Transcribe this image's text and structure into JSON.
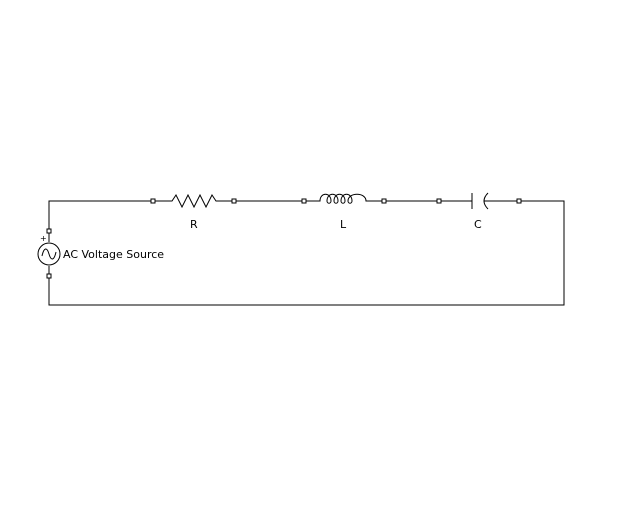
{
  "diagram": {
    "source": {
      "label": "AC Voltage Source",
      "plus_sign": "+",
      "icon": "ac-sine-icon"
    },
    "resistor": {
      "label": "R"
    },
    "inductor": {
      "label": "L"
    },
    "capacitor": {
      "label": "C"
    }
  }
}
